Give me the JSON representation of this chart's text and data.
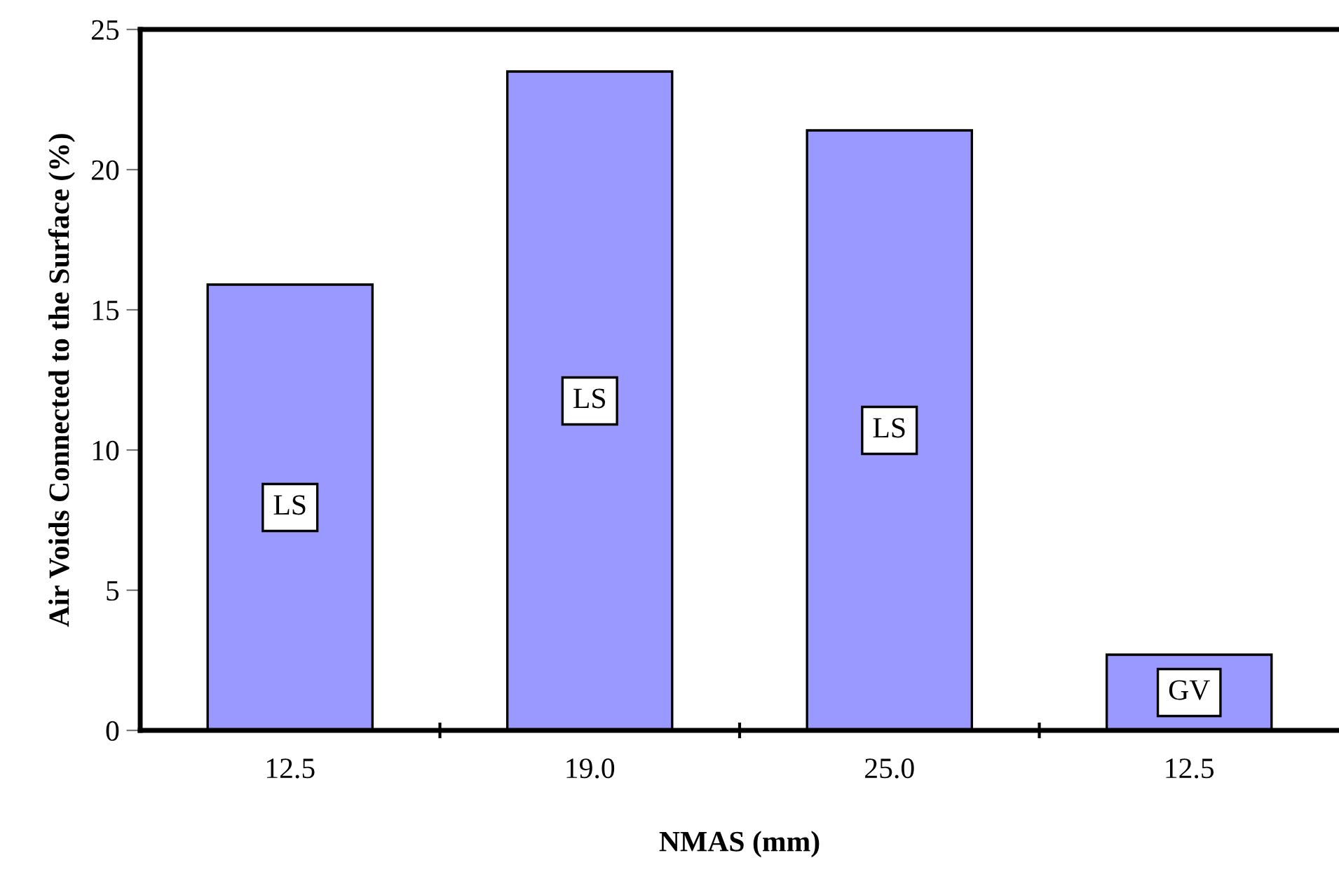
{
  "chart_data": {
    "type": "bar",
    "xlabel": "NMAS (mm)",
    "ylabel": "Air Voids Connected to the Surface (%)",
    "categories": [
      "12.5",
      "19.0",
      "25.0",
      "12.5"
    ],
    "values": [
      15.9,
      23.5,
      21.4,
      2.7
    ],
    "color": "#9999ff",
    "ylim": [
      0,
      25
    ],
    "yticks": [
      0,
      5,
      10,
      15,
      20,
      25
    ],
    "grid": false,
    "annotations": [
      "LS",
      "LS",
      "LS",
      "GV"
    ]
  }
}
